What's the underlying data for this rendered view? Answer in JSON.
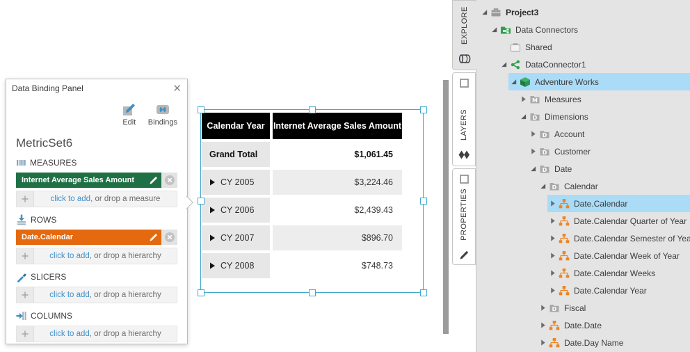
{
  "binding_panel": {
    "title": "Data Binding Panel",
    "toolbar": {
      "edit_label": "Edit",
      "bindings_label": "Bindings"
    },
    "metric_set_name": "MetricSet6",
    "sections": [
      {
        "id": "measures",
        "label": "MEASURES",
        "icon": "measures-icon",
        "chips": [
          {
            "label": "Internet Average Sales Amount",
            "color": "#1f7145"
          }
        ],
        "add_link": "click to add",
        "add_rest": ", or drop a measure"
      },
      {
        "id": "rows",
        "label": "ROWS",
        "icon": "rows-icon",
        "chips": [
          {
            "label": "Date.Calendar",
            "color": "#e5690f"
          }
        ],
        "add_link": "click to add",
        "add_rest": ", or drop a hierarchy"
      },
      {
        "id": "slicers",
        "label": "SLICERS",
        "icon": "slicers-icon",
        "chips": [],
        "add_link": "click to add",
        "add_rest": ", or drop a hierarchy"
      },
      {
        "id": "columns",
        "label": "COLUMNS",
        "icon": "columns-icon",
        "chips": [],
        "add_link": "click to add",
        "add_rest": ", or drop a hierarchy"
      }
    ]
  },
  "table": {
    "columns": [
      "Calendar Year",
      "Internet Average Sales Amount"
    ],
    "rows": [
      {
        "label": "Grand Total",
        "value": "$1,061.45",
        "bold": true,
        "expandable": false
      },
      {
        "label": "CY 2005",
        "value": "$3,224.46",
        "bold": false,
        "expandable": true
      },
      {
        "label": "CY 2006",
        "value": "$2,439.43",
        "bold": false,
        "expandable": true
      },
      {
        "label": "CY 2007",
        "value": "$896.70",
        "bold": false,
        "expandable": true
      },
      {
        "label": "CY 2008",
        "value": "$748.73",
        "bold": false,
        "expandable": true
      }
    ]
  },
  "sidebar": {
    "tabs": [
      {
        "label": "EXPLORE",
        "active": true,
        "top_icon": null,
        "bottom_icon": "database-icon"
      },
      {
        "label": "LAYERS",
        "active": false,
        "top_icon": "window-icon",
        "bottom_icon": "layers-icon"
      },
      {
        "label": "PROPERTIES",
        "active": false,
        "top_icon": "window-icon",
        "bottom_icon": "pencil-icon"
      }
    ],
    "tree": [
      {
        "label": "Project3",
        "level": 0,
        "icon": "briefcase",
        "expand": "expanded",
        "bold": true,
        "selected": false
      },
      {
        "label": "Data Connectors",
        "level": 1,
        "icon": "data-connectors",
        "expand": "expanded",
        "bold": false,
        "selected": false
      },
      {
        "label": "Shared",
        "level": 2,
        "icon": "briefcase-light",
        "expand": "none",
        "bold": false,
        "selected": false
      },
      {
        "label": "DataConnector1",
        "level": 2,
        "icon": "connector",
        "expand": "expanded",
        "bold": false,
        "selected": false
      },
      {
        "label": "Adventure Works",
        "level": 3,
        "icon": "cube",
        "expand": "expanded",
        "bold": false,
        "selected": true
      },
      {
        "label": "Measures",
        "level": 4,
        "icon": "folder-m",
        "expand": "collapsed",
        "bold": false,
        "selected": false
      },
      {
        "label": "Dimensions",
        "level": 4,
        "icon": "folder-d",
        "expand": "expanded",
        "bold": false,
        "selected": false
      },
      {
        "label": "Account",
        "level": 5,
        "icon": "folder-d",
        "expand": "collapsed",
        "bold": false,
        "selected": false
      },
      {
        "label": "Customer",
        "level": 5,
        "icon": "folder-d",
        "expand": "collapsed",
        "bold": false,
        "selected": false
      },
      {
        "label": "Date",
        "level": 5,
        "icon": "folder-d",
        "expand": "expanded",
        "bold": false,
        "selected": false
      },
      {
        "label": "Calendar",
        "level": 6,
        "icon": "folder-d",
        "expand": "expanded",
        "bold": false,
        "selected": false
      },
      {
        "label": "Date.Calendar",
        "level": 7,
        "icon": "hierarchy",
        "expand": "collapsed",
        "bold": false,
        "selected": true
      },
      {
        "label": "Date.Calendar Quarter of Year",
        "level": 7,
        "icon": "hierarchy",
        "expand": "collapsed",
        "bold": false,
        "selected": false
      },
      {
        "label": "Date.Calendar Semester of Year",
        "level": 7,
        "icon": "hierarchy",
        "expand": "collapsed",
        "bold": false,
        "selected": false
      },
      {
        "label": "Date.Calendar Week of Year",
        "level": 7,
        "icon": "hierarchy",
        "expand": "collapsed",
        "bold": false,
        "selected": false
      },
      {
        "label": "Date.Calendar Weeks",
        "level": 7,
        "icon": "hierarchy",
        "expand": "collapsed",
        "bold": false,
        "selected": false
      },
      {
        "label": "Date.Calendar Year",
        "level": 7,
        "icon": "hierarchy",
        "expand": "collapsed",
        "bold": false,
        "selected": false
      },
      {
        "label": "Fiscal",
        "level": 6,
        "icon": "folder-d",
        "expand": "collapsed",
        "bold": false,
        "selected": false
      },
      {
        "label": "Date.Date",
        "level": 6,
        "icon": "hierarchy",
        "expand": "collapsed",
        "bold": false,
        "selected": false
      },
      {
        "label": "Date.Day Name",
        "level": 6,
        "icon": "hierarchy",
        "expand": "collapsed",
        "bold": false,
        "selected": false
      }
    ]
  },
  "colors": {
    "accent_blue": "#3b8fc4",
    "link_blue": "#4191c9",
    "chip_green": "#1f7145",
    "chip_orange": "#e5690f",
    "selection_border": "#41a8cc",
    "tree_selection": "#aadcf7",
    "tree_background": "#e4e4e4",
    "table_header": "#000000"
  }
}
